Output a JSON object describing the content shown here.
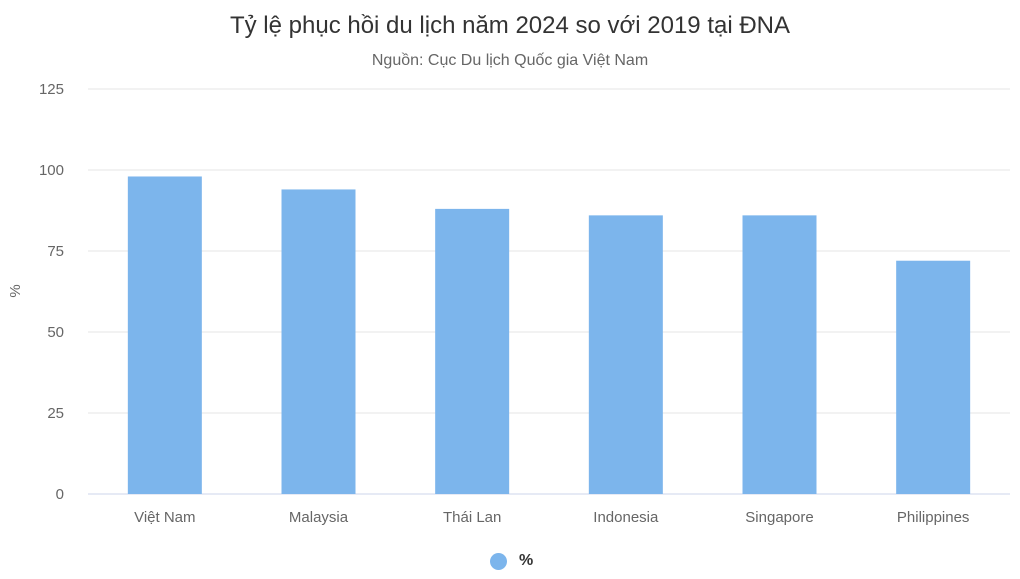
{
  "chart_data": {
    "type": "bar",
    "title": "Tỷ lệ phục hồi du lịch năm 2024 so với 2019 tại ĐNA",
    "subtitle": "Nguồn: Cục Du lịch Quốc gia Việt Nam",
    "categories": [
      "Việt Nam",
      "Malaysia",
      "Thái Lan",
      "Indonesia",
      "Singapore",
      "Philippines"
    ],
    "series": [
      {
        "name": "%",
        "values": [
          98,
          94,
          88,
          86,
          86,
          72
        ]
      }
    ],
    "xlabel": "",
    "ylabel": "%",
    "ylim": [
      0,
      125
    ],
    "yticks": [
      0,
      25,
      50,
      75,
      100,
      125
    ],
    "grid": true,
    "legend": "bottom-center",
    "bar_color": "#7cb5ec"
  }
}
